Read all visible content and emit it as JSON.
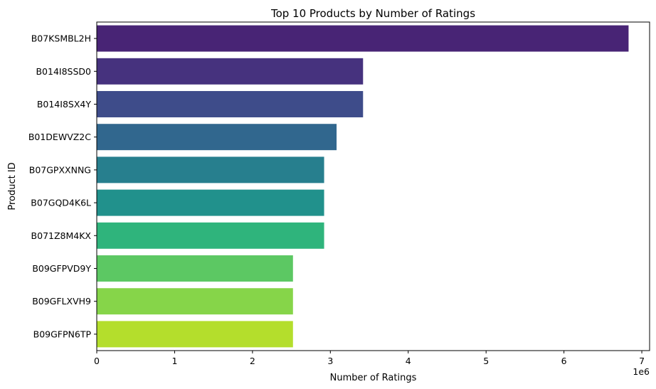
{
  "chart_data": {
    "type": "bar",
    "orientation": "horizontal",
    "title": "Top 10 Products by Number of Ratings",
    "xlabel": "Number of Ratings",
    "ylabel": "Product ID",
    "x_offset_label": "1e6",
    "xlim": [
      0,
      7.1
    ],
    "x_ticks": [
      "0",
      "1",
      "2",
      "3",
      "4",
      "5",
      "6",
      "7"
    ],
    "x_scale_note": "values in millions",
    "grid": false,
    "categories": [
      "B07KSMBL2H",
      "B014I8SSD0",
      "B014I8SX4Y",
      "B01DEWVZ2C",
      "B07GPXXNNG",
      "B07GQD4K6L",
      "B071Z8M4KX",
      "B09GFPVD9Y",
      "B09GFLXVH9",
      "B09GFPN6TP"
    ],
    "values": [
      6.83,
      3.42,
      3.42,
      3.08,
      2.92,
      2.92,
      2.92,
      2.52,
      2.52,
      2.52
    ],
    "colors": [
      "#482475",
      "#46327e",
      "#3e4c8a",
      "#31678e",
      "#277f8e",
      "#21918c",
      "#2fb47c",
      "#5cc863",
      "#86d549",
      "#b4de2c"
    ]
  }
}
